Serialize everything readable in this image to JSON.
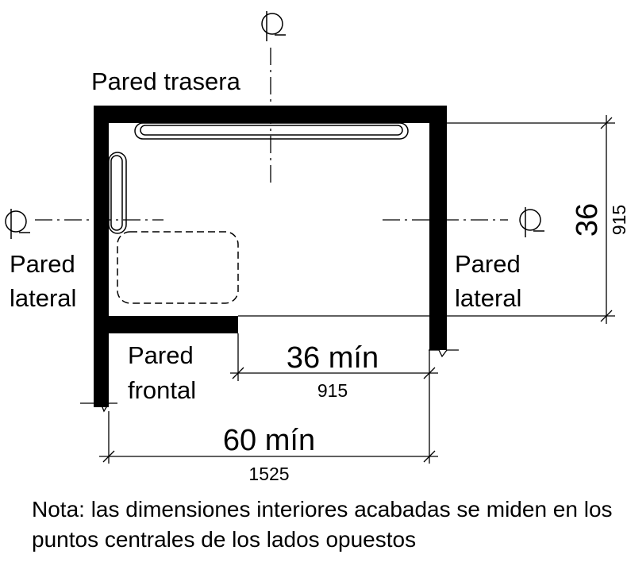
{
  "labels": {
    "back_wall": "Pared trasera",
    "side_wall_left_1": "Pared",
    "side_wall_left_2": "lateral",
    "side_wall_right_1": "Pared",
    "side_wall_right_2": "lateral",
    "front_wall_1": "Pared",
    "front_wall_2": "frontal"
  },
  "dimensions": {
    "depth_in": "36",
    "depth_mm": "915",
    "door_opening_in": "36 mín",
    "door_opening_mm": "915",
    "width_in": "60 mín",
    "width_mm": "1525"
  },
  "note": "Nota: las dimensiones interiores acabadas se miden en los puntos centrales de los lados opuestos",
  "icons": [
    "centerline-symbol"
  ]
}
